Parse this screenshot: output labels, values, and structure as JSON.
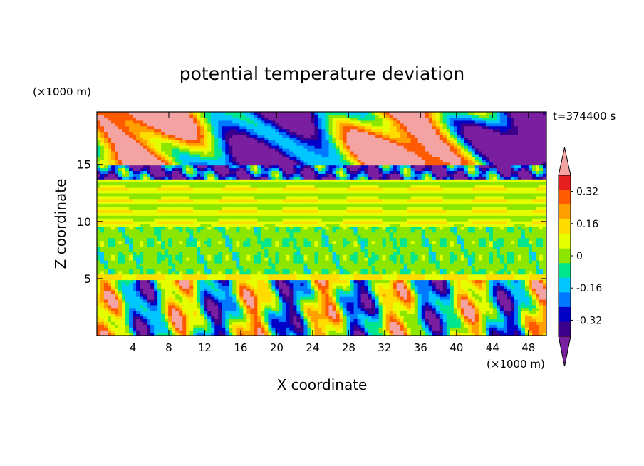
{
  "chart_data": {
    "type": "heatmap",
    "title": "potential temperature deviation",
    "time_label": "t=374400 s",
    "xlabel": "X coordinate",
    "ylabel": "Z coordinate",
    "x_unit": "(×1000 m)",
    "y_unit": "(×1000 m)",
    "xlim": [
      0,
      50
    ],
    "ylim": [
      0,
      19.6
    ],
    "x_ticks": [
      4,
      8,
      12,
      16,
      20,
      24,
      28,
      32,
      36,
      40,
      44,
      48
    ],
    "y_ticks": [
      5,
      10,
      15
    ],
    "colorbar": {
      "levels": [
        -0.4,
        -0.32,
        -0.24,
        -0.16,
        -0.08,
        0,
        0.08,
        0.16,
        0.24,
        0.32,
        0.4
      ],
      "tick_labels": [
        "0.32",
        "0.16",
        "0",
        "-0.16",
        "-0.32"
      ],
      "tick_values": [
        0.32,
        0.16,
        0,
        -0.16,
        -0.32
      ],
      "colors": [
        "#7a1fa0",
        "#3a008c",
        "#0000c8",
        "#0078ff",
        "#00c8ff",
        "#00e68c",
        "#8ce600",
        "#e6ff00",
        "#ffdc00",
        "#ffa000",
        "#ff5a00",
        "#e61e1e",
        "#f4a3a3"
      ],
      "extend": "both"
    },
    "field_layers": [
      {
        "z_range": [
          0,
          4.9
        ],
        "description": "alternating warm/cold plumes",
        "value_range": [
          -0.44,
          0.44
        ]
      },
      {
        "z_range": [
          4.9,
          5.5
        ],
        "value": 0.18
      },
      {
        "z_range": [
          5.5,
          9.5
        ],
        "value": 0.03
      },
      {
        "z_range": [
          9.5,
          13.6
        ],
        "value": 0.14
      },
      {
        "z_range": [
          13.6,
          15.0
        ],
        "value": -0.3
      },
      {
        "z_range": [
          15.0,
          19.6
        ],
        "value_range": [
          -0.44,
          0.44
        ]
      }
    ]
  }
}
